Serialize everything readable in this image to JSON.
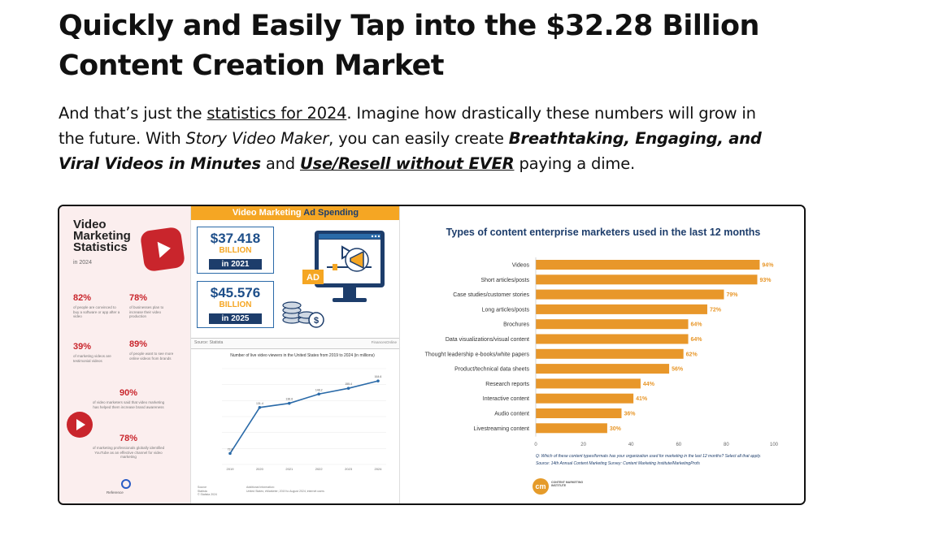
{
  "headline": {
    "part1": "Quickly and Easily Tap into the ",
    "part_bold": "$32.28 Billion",
    "part2": " Content Creation Market"
  },
  "lead": {
    "t1": "And that’s just the ",
    "link": "statistics for 2024",
    "t2": ". Imagine how drastically these numbers will grow in the future. With ",
    "product": "Story Video Maker",
    "t3": ", you can easily create ",
    "bold1": "Breathtaking, Engaging, and Viral Videos in Minutes",
    "t4": " and ",
    "bold2": "Use/Resell without EVER",
    "t5": " paying a dime."
  },
  "infographic_left": {
    "title": "Video Marketing Statistics",
    "year": "in 2024",
    "stats": [
      {
        "num": "82%",
        "desc": "of people are convinced to buy a software or app after a video"
      },
      {
        "num": "78%",
        "desc": "of businesses plan to increase their video production"
      },
      {
        "num": "39%",
        "desc": "of marketing videos are testimonial videos"
      },
      {
        "num": "89%",
        "desc": "of people want to see more online videos from brands"
      },
      {
        "num": "90%",
        "desc": "of video marketers said that video marketing has helped them increase brand awareness"
      },
      {
        "num": "78%",
        "desc": "of marketing professionals globally identified YouTube as an effective channel for video marketing"
      }
    ],
    "reference": "Reference"
  },
  "infographic_mid": {
    "banner_a": "Video Marketing ",
    "banner_b": "Ad Spending",
    "spend": [
      {
        "amount": "$37.418",
        "unit": "BILLION",
        "year": "in 2021"
      },
      {
        "amount": "$45.576",
        "unit": "BILLION",
        "year": "in 2025"
      }
    ],
    "ad_label": "AD",
    "source": "Source: Statista",
    "source_brand": "FinancesOnline",
    "chart_title": "Number of live video viewers in the United States from 2019 to 2024 (in millions)",
    "foot_left": "Source\nStatista\n© Statista 2024",
    "foot_right": "Additional Information:\nUnited States; eMarketer; 2019 to August 2024; internet users"
  },
  "colors": {
    "accent_red": "#c9252c",
    "accent_orange": "#f5a623",
    "navy": "#1d3d6b",
    "bar_orange": "#e8972a"
  },
  "chart_data": [
    {
      "type": "bar",
      "orientation": "horizontal",
      "title": "Types of content enterprise marketers used in the last 12 months",
      "categories": [
        "Videos",
        "Short articles/posts",
        "Case studies/customer stories",
        "Long articles/posts",
        "Brochures",
        "Data visualizations/visual content",
        "Thought leadership e-books/white papers",
        "Product/technical data sheets",
        "Research reports",
        "Interactive content",
        "Audio content",
        "Livestreaming content"
      ],
      "values": [
        94,
        93,
        79,
        72,
        64,
        64,
        62,
        56,
        44,
        41,
        36,
        30
      ],
      "value_labels": [
        "94%",
        "93%",
        "79%",
        "72%",
        "64%",
        "64%",
        "62%",
        "56%",
        "44%",
        "41%",
        "36%",
        "30%"
      ],
      "xlim": [
        0,
        100
      ],
      "xticks": [
        "0",
        "20",
        "40",
        "60",
        "80",
        "100"
      ],
      "question": "Q: Which of these content types/formats has your organization used for marketing in the last 12 months? Select all that apply.",
      "source": "Source: 14th Annual Content Marketing Survey: Content Marketing Institute/MarketingProfs",
      "logo_text": "CONTENT MARKETING INSTITUTE",
      "logo_mark": "cm"
    },
    {
      "type": "line",
      "title": "Number of live video viewers in the United States from 2019 to 2024 (in millions)",
      "x": [
        "2019",
        "2020",
        "2021",
        "2022",
        "2023",
        "2024"
      ],
      "values": [
        73.8,
        131.4,
        136.6,
        148.2,
        155.4,
        164.6
      ],
      "value_labels": [
        "73.8",
        "131.4",
        "136.6",
        "148.2",
        "155.4",
        "164.6"
      ],
      "ylim": [
        60,
        180
      ]
    }
  ]
}
